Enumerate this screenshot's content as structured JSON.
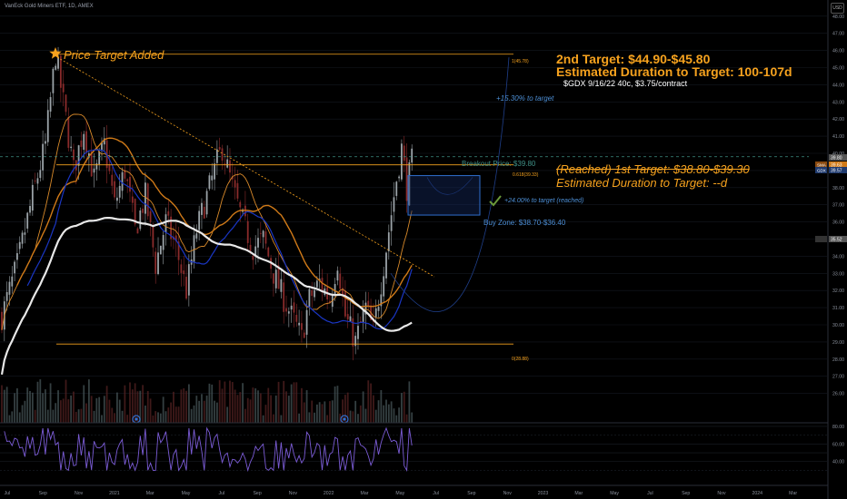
{
  "header": {
    "title": "VanEck Gold Miners ETF, 1D, AMEX"
  },
  "annotations": {
    "second_target": "2nd Target: $44.90-$45.80",
    "second_duration": "Estimated Duration to Target: 100-107d",
    "contract": "$GDX 9/16/22 40c, $3.75/contract",
    "price_target_added": "Price Target Added",
    "pct_to_target": "+15.30% to target",
    "breakout": "Breakout Price: $39.80",
    "first_target": "(Reached) 1st Target: $38.80-$39.30",
    "first_duration": "Estimated Duration to Target: --d",
    "pct_reached": "+24.00% to target (reached)",
    "buy_zone": "Buy Zone: $38.70-$36.40",
    "fib_top": "1(45.78)",
    "fib_mid": "0.618(39.33)",
    "fib_bottom": "0(28.88)",
    "currency": "USD"
  },
  "colors": {
    "background": "#000000",
    "candle_up": "#9ba3a8",
    "candle_down": "#8a2b2b",
    "ma_orange_thick": "#d07a18",
    "ma_orange_thin": "#d98a2a",
    "ma_blue": "#1a36c4",
    "ma_white": "#e8e8e8",
    "fib_line": "#f6a21e",
    "accent_orange": "#f6a21e",
    "accent_blue": "#4d8fd6",
    "rsi_line": "#7b5cd6",
    "check": "#6b9a3a"
  },
  "chart_data": {
    "type": "candlestick",
    "title": "VanEck Gold Miners ETF, 1D, AMEX",
    "y_axis": {
      "ticks": [
        48,
        47,
        46,
        45,
        44,
        43,
        42,
        41,
        40,
        39,
        38,
        37,
        36,
        35,
        34,
        33,
        32,
        31,
        30,
        29,
        28,
        27,
        26
      ],
      "labels": [
        "48.00",
        "47.00",
        "46.00",
        "45.00",
        "44.00",
        "43.00",
        "42.00",
        "41.00",
        "40.00",
        "39.00",
        "38.00",
        "37.00",
        "36.00",
        "35.00",
        "34.00",
        "33.00",
        "32.00",
        "31.00",
        "30.00",
        "29.00",
        "28.00",
        "27.00",
        "26.00"
      ],
      "ylim": [
        25.5,
        49
      ]
    },
    "x_axis": {
      "labels": [
        "Jul",
        "Sep",
        "Nov",
        "2021",
        "Mar",
        "May",
        "Jul",
        "Sep",
        "Nov",
        "2022",
        "Mar",
        "May",
        "Jul",
        "Sep",
        "Nov",
        "2023",
        "Mar",
        "May",
        "Jul",
        "Sep",
        "Nov",
        "2024",
        "Mar"
      ]
    },
    "price_badges": [
      {
        "label": "39.80",
        "value": 39.8,
        "color": "#555555"
      },
      {
        "label": "39.63",
        "value": 39.63,
        "color": "#d07a18"
      },
      {
        "label": "39.57",
        "value": 39.57,
        "color": "#1f3a6e"
      },
      {
        "label": "35.52",
        "value": 35.52,
        "color": "#555555"
      }
    ],
    "badge_tags": [
      "SMA",
      "GDX"
    ],
    "key_prices": {
      "high_2020": 45.78,
      "fib_0618": 39.33,
      "low": 28.88,
      "breakout": 39.8
    },
    "close_path": [
      [
        0,
        30.5
      ],
      [
        6,
        33.5
      ],
      [
        12,
        37.5
      ],
      [
        17,
        40.5
      ],
      [
        21,
        45.78
      ],
      [
        25,
        42.0
      ],
      [
        28,
        39.0
      ],
      [
        32,
        41.5
      ],
      [
        36,
        38.5
      ],
      [
        40,
        40.5
      ],
      [
        44,
        37.0
      ],
      [
        48,
        39.0
      ],
      [
        52,
        35.5
      ],
      [
        56,
        37.5
      ],
      [
        60,
        33.5
      ],
      [
        64,
        36.0
      ],
      [
        68,
        34.5
      ],
      [
        72,
        32.0
      ],
      [
        76,
        35.5
      ],
      [
        80,
        37.5
      ],
      [
        84,
        39.5
      ],
      [
        86,
        40.3
      ],
      [
        90,
        38.0
      ],
      [
        94,
        36.0
      ],
      [
        98,
        34.5
      ],
      [
        102,
        35.0
      ],
      [
        106,
        33.0
      ],
      [
        110,
        31.5
      ],
      [
        114,
        30.2
      ],
      [
        117,
        29.2
      ],
      [
        120,
        31.5
      ],
      [
        124,
        32.5
      ],
      [
        128,
        31.5
      ],
      [
        131,
        33.8
      ],
      [
        134,
        30.5
      ],
      [
        138,
        29.0
      ],
      [
        142,
        31.0
      ],
      [
        145,
        29.6
      ],
      [
        148,
        32.5
      ],
      [
        150,
        34.5
      ],
      [
        152,
        36.5
      ],
      [
        154,
        38.5
      ],
      [
        156,
        40.3
      ],
      [
        158,
        38.0
      ],
      [
        160,
        39.5
      ]
    ],
    "rsi": {
      "levels": [
        80,
        70,
        60,
        50,
        40,
        30
      ],
      "labels": [
        "80.00",
        "60.00",
        "40.00"
      ]
    }
  }
}
